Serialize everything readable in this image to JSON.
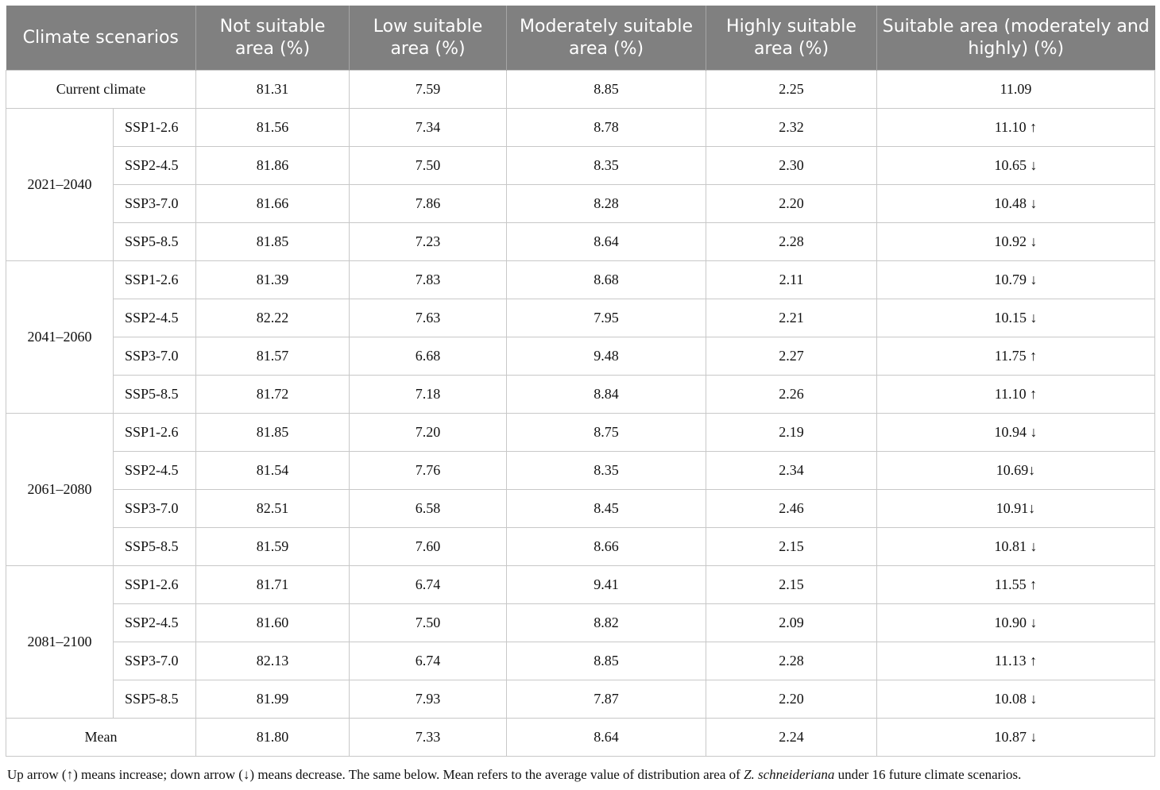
{
  "table": {
    "headers": [
      "Climate scenarios",
      "Not suitable area (%)",
      "Low suitable area (%)",
      "Moderately suitable area (%)",
      "Highly suitable area (%)",
      "Suitable area (moderately and highly) (%)"
    ],
    "current": {
      "label": "Current climate",
      "values": [
        "81.31",
        "7.59",
        "8.85",
        "2.25",
        "11.09"
      ]
    },
    "groups": [
      {
        "period": "2021–2040",
        "rows": [
          {
            "scenario": "SSP1-2.6",
            "values": [
              "81.56",
              "7.34",
              "8.78",
              "2.32",
              "11.10 ↑"
            ]
          },
          {
            "scenario": "SSP2-4.5",
            "values": [
              "81.86",
              "7.50",
              "8.35",
              "2.30",
              "10.65 ↓"
            ]
          },
          {
            "scenario": "SSP3-7.0",
            "values": [
              "81.66",
              "7.86",
              "8.28",
              "2.20",
              "10.48 ↓"
            ]
          },
          {
            "scenario": "SSP5-8.5",
            "values": [
              "81.85",
              "7.23",
              "8.64",
              "2.28",
              "10.92 ↓"
            ]
          }
        ]
      },
      {
        "period": "2041–2060",
        "rows": [
          {
            "scenario": "SSP1-2.6",
            "values": [
              "81.39",
              "7.83",
              "8.68",
              "2.11",
              "10.79 ↓"
            ]
          },
          {
            "scenario": "SSP2-4.5",
            "values": [
              "82.22",
              "7.63",
              "7.95",
              "2.21",
              "10.15 ↓"
            ]
          },
          {
            "scenario": "SSP3-7.0",
            "values": [
              "81.57",
              "6.68",
              "9.48",
              "2.27",
              "11.75 ↑"
            ]
          },
          {
            "scenario": "SSP5-8.5",
            "values": [
              "81.72",
              "7.18",
              "8.84",
              "2.26",
              "11.10 ↑"
            ]
          }
        ]
      },
      {
        "period": "2061–2080",
        "rows": [
          {
            "scenario": "SSP1-2.6",
            "values": [
              "81.85",
              "7.20",
              "8.75",
              "2.19",
              "10.94 ↓"
            ]
          },
          {
            "scenario": "SSP2-4.5",
            "values": [
              "81.54",
              "7.76",
              "8.35",
              "2.34",
              "10.69↓"
            ]
          },
          {
            "scenario": "SSP3-7.0",
            "values": [
              "82.51",
              "6.58",
              "8.45",
              "2.46",
              "10.91↓"
            ]
          },
          {
            "scenario": "SSP5-8.5",
            "values": [
              "81.59",
              "7.60",
              "8.66",
              "2.15",
              "10.81 ↓"
            ]
          }
        ]
      },
      {
        "period": "2081–2100",
        "rows": [
          {
            "scenario": "SSP1-2.6",
            "values": [
              "81.71",
              "6.74",
              "9.41",
              "2.15",
              "11.55 ↑"
            ]
          },
          {
            "scenario": "SSP2-4.5",
            "values": [
              "81.60",
              "7.50",
              "8.82",
              "2.09",
              "10.90 ↓"
            ]
          },
          {
            "scenario": "SSP3-7.0",
            "values": [
              "82.13",
              "6.74",
              "8.85",
              "2.28",
              "11.13 ↑"
            ]
          },
          {
            "scenario": "SSP5-8.5",
            "values": [
              "81.99",
              "7.93",
              "7.87",
              "2.20",
              "10.08 ↓"
            ]
          }
        ]
      }
    ],
    "mean": {
      "label": "Mean",
      "values": [
        "81.80",
        "7.33",
        "8.64",
        "2.24",
        "10.87 ↓"
      ]
    }
  },
  "footnote": {
    "before": "Up arrow (↑) means increase; down arrow (↓) means decrease. The same below. Mean refers to the average value of distribution area of ",
    "species": "Z. schneideriana",
    "after": " under 16 future climate scenarios."
  }
}
